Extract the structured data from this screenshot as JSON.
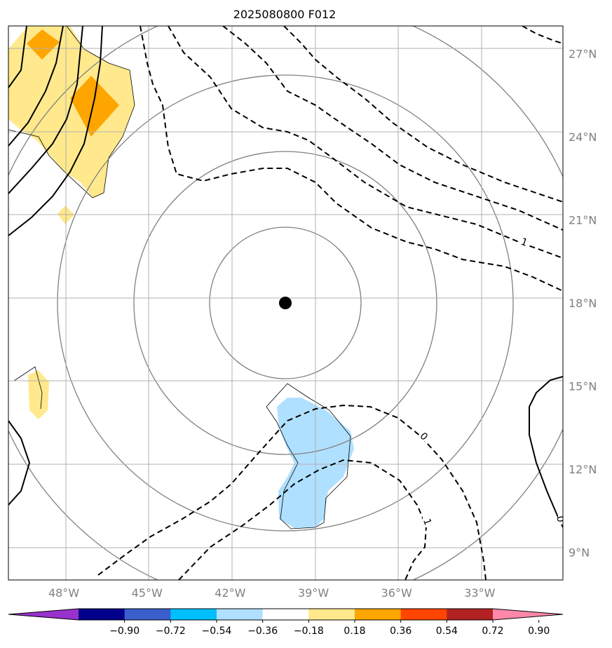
{
  "title": "2025080800 F012",
  "chart_data": {
    "type": "contour-map",
    "title": "2025080800 F012",
    "lon_range": [
      -50.0,
      -30.0
    ],
    "lat_range": [
      8.0,
      28.0
    ],
    "x_ticks": [
      -48,
      -45,
      -42,
      -39,
      -36,
      -33
    ],
    "x_tick_labels": [
      "48°W",
      "45°W",
      "42°W",
      "39°W",
      "36°W",
      "33°W"
    ],
    "y_ticks": [
      9,
      12,
      15,
      18,
      21,
      24,
      27
    ],
    "y_tick_labels": [
      "9°N",
      "12°N",
      "15°N",
      "18°N",
      "21°N",
      "24°N",
      "27°N"
    ],
    "grid": true,
    "center_marker": {
      "lon": -40.0,
      "lat": 17.8
    },
    "range_rings_count": 4,
    "contour_labels": [
      "1",
      "0",
      "1",
      "0"
    ],
    "colorbar": {
      "ticks": [
        "−0.90",
        "−0.72",
        "−0.54",
        "−0.36",
        "−0.18",
        "0.18",
        "0.36",
        "0.54",
        "0.72",
        "0.90"
      ],
      "colors": [
        "#9932cc",
        "#00008b",
        "#3a5fcd",
        "#00bfff",
        "#b0e0ff",
        "#ffffff",
        "#ffe98c",
        "#ffa500",
        "#ff4500",
        "#b22222",
        "#ff88aa"
      ],
      "extend": "both"
    }
  }
}
